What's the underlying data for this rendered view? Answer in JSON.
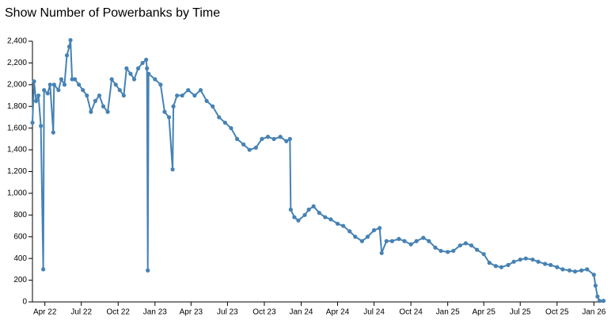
{
  "chart_data": {
    "type": "line",
    "title": "Show Number of Powerbanks by Time",
    "color": "#4682b4",
    "xlim": [
      "2022-03-01",
      "2026-01-28"
    ],
    "xticks": [
      {
        "value": "2022-04-01",
        "label": "Apr 22"
      },
      {
        "value": "2022-07-01",
        "label": "Jul 22"
      },
      {
        "value": "2022-10-01",
        "label": "Oct 22"
      },
      {
        "value": "2023-01-01",
        "label": "Jan 23"
      },
      {
        "value": "2023-04-01",
        "label": "Apr 23"
      },
      {
        "value": "2023-07-01",
        "label": "Jul 23"
      },
      {
        "value": "2023-10-01",
        "label": "Oct 23"
      },
      {
        "value": "2024-01-01",
        "label": "Jan 24"
      },
      {
        "value": "2024-04-01",
        "label": "Apr 24"
      },
      {
        "value": "2024-07-01",
        "label": "Jul 24"
      },
      {
        "value": "2024-10-01",
        "label": "Oct 24"
      },
      {
        "value": "2025-01-01",
        "label": "Jan 25"
      },
      {
        "value": "2025-04-01",
        "label": "Apr 25"
      },
      {
        "value": "2025-07-01",
        "label": "Jul 25"
      },
      {
        "value": "2025-10-01",
        "label": "Oct 25"
      },
      {
        "value": "2026-01-01",
        "label": "Jan 26"
      }
    ],
    "ylim": [
      0,
      2400
    ],
    "yticks": [
      0,
      200,
      400,
      600,
      800,
      {
        "value": 1000,
        "label": "1,000"
      },
      {
        "value": 1200,
        "label": "1,200"
      },
      {
        "value": 1400,
        "label": "1,400"
      },
      {
        "value": 1600,
        "label": "1,600"
      },
      {
        "value": 1800,
        "label": "1,800"
      },
      {
        "value": 2000,
        "label": "2,000"
      },
      {
        "value": 2200,
        "label": "2,200"
      },
      {
        "value": 2400,
        "label": "2,400"
      }
    ],
    "x": [
      "2022-03-01",
      "2022-03-05",
      "2022-03-10",
      "2022-03-16",
      "2022-03-22",
      "2022-03-28",
      "2022-03-30",
      "2022-04-08",
      "2022-04-14",
      "2022-04-22",
      "2022-04-24",
      "2022-05-05",
      "2022-05-12",
      "2022-05-20",
      "2022-05-26",
      "2022-06-01",
      "2022-06-04",
      "2022-06-08",
      "2022-06-15",
      "2022-06-25",
      "2022-07-05",
      "2022-07-15",
      "2022-07-25",
      "2022-08-05",
      "2022-08-15",
      "2022-08-25",
      "2022-09-05",
      "2022-09-15",
      "2022-09-25",
      "2022-10-05",
      "2022-10-15",
      "2022-10-22",
      "2022-11-01",
      "2022-11-10",
      "2022-11-20",
      "2022-12-01",
      "2022-12-10",
      "2022-12-12",
      "2022-12-14",
      "2022-12-16",
      "2023-01-01",
      "2023-01-15",
      "2023-01-25",
      "2023-02-05",
      "2023-02-14",
      "2023-02-16",
      "2023-02-25",
      "2023-03-10",
      "2023-03-25",
      "2023-04-10",
      "2023-04-25",
      "2023-05-10",
      "2023-05-25",
      "2023-06-10",
      "2023-06-25",
      "2023-07-10",
      "2023-07-25",
      "2023-08-10",
      "2023-08-25",
      "2023-09-10",
      "2023-09-25",
      "2023-10-10",
      "2023-10-25",
      "2023-11-10",
      "2023-11-25",
      "2023-12-04",
      "2023-12-06",
      "2023-12-15",
      "2023-12-25",
      "2024-01-10",
      "2024-01-20",
      "2024-02-01",
      "2024-02-15",
      "2024-03-01",
      "2024-03-15",
      "2024-04-01",
      "2024-04-15",
      "2024-05-01",
      "2024-05-15",
      "2024-06-01",
      "2024-06-15",
      "2024-07-01",
      "2024-07-15",
      "2024-07-20",
      "2024-08-01",
      "2024-08-15",
      "2024-09-01",
      "2024-09-15",
      "2024-10-01",
      "2024-10-15",
      "2024-11-01",
      "2024-11-15",
      "2024-12-01",
      "2024-12-15",
      "2025-01-01",
      "2025-01-15",
      "2025-02-01",
      "2025-02-15",
      "2025-03-01",
      "2025-03-15",
      "2025-04-01",
      "2025-04-15",
      "2025-05-01",
      "2025-05-15",
      "2025-06-01",
      "2025-06-15",
      "2025-07-01",
      "2025-07-15",
      "2025-08-01",
      "2025-08-15",
      "2025-09-01",
      "2025-09-15",
      "2025-10-01",
      "2025-10-15",
      "2025-11-01",
      "2025-11-15",
      "2025-12-01",
      "2025-12-15",
      "2026-01-01",
      "2026-01-05",
      "2026-01-10",
      "2026-01-15",
      "2026-01-25"
    ],
    "values": [
      1650,
      2030,
      1850,
      1900,
      1620,
      300,
      1950,
      1920,
      2000,
      1560,
      2000,
      1950,
      2050,
      2000,
      2270,
      2350,
      2410,
      2050,
      2050,
      2000,
      1950,
      1900,
      1750,
      1850,
      1900,
      1800,
      1750,
      2050,
      2000,
      1950,
      1900,
      2150,
      2100,
      2050,
      2150,
      2200,
      2230,
      2150,
      290,
      2100,
      2050,
      2000,
      1750,
      1700,
      1220,
      1800,
      1900,
      1900,
      1950,
      1900,
      1950,
      1850,
      1800,
      1700,
      1650,
      1600,
      1500,
      1450,
      1400,
      1420,
      1500,
      1520,
      1500,
      1520,
      1480,
      1500,
      850,
      780,
      750,
      800,
      850,
      880,
      820,
      780,
      760,
      720,
      700,
      650,
      600,
      560,
      600,
      660,
      680,
      450,
      560,
      560,
      580,
      560,
      530,
      560,
      590,
      560,
      500,
      470,
      460,
      470,
      520,
      540,
      520,
      480,
      440,
      360,
      330,
      320,
      340,
      370,
      390,
      400,
      390,
      370,
      350,
      340,
      320,
      300,
      290,
      280,
      290,
      300,
      250,
      150,
      50,
      10,
      10
    ]
  }
}
